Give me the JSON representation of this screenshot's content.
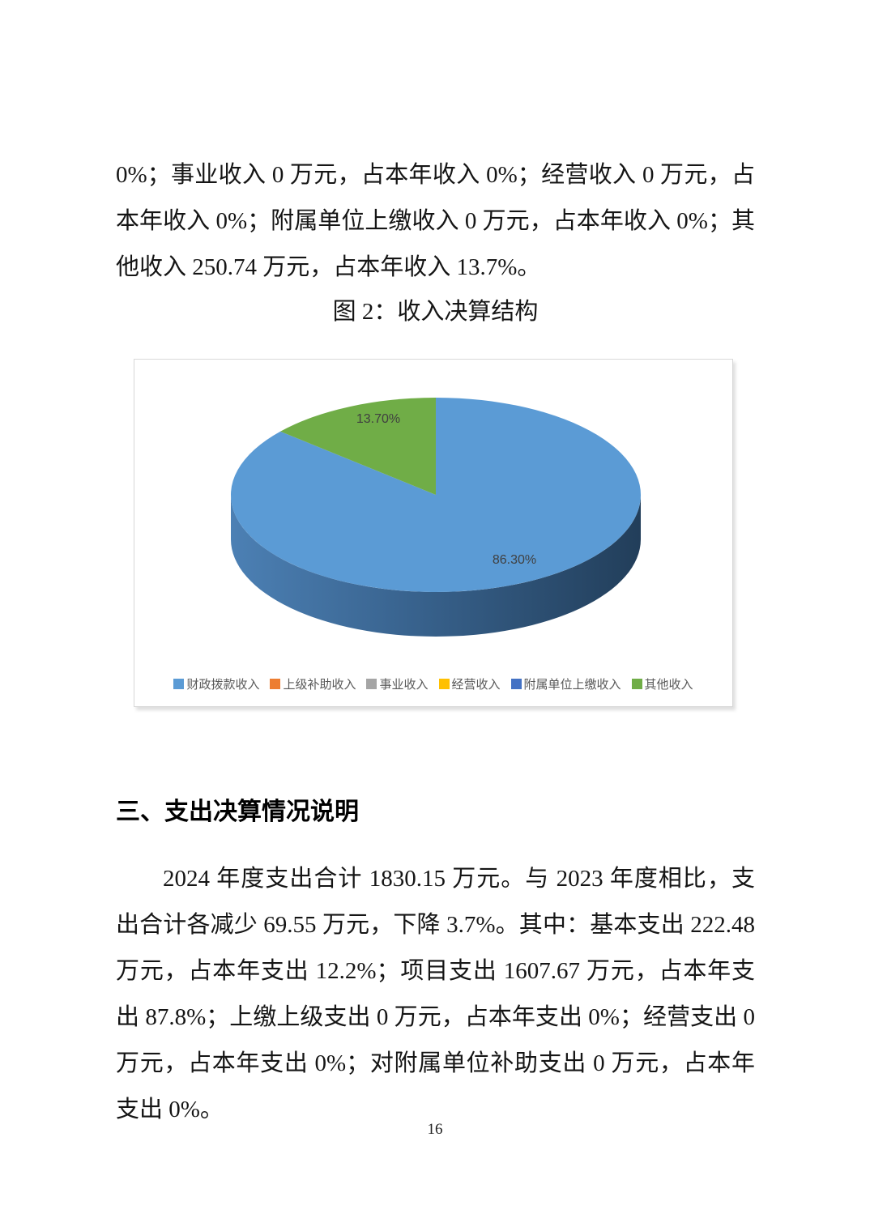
{
  "page": {
    "number": "16"
  },
  "income_paragraph": "0%；事业收入 0 万元，占本年收入 0%；经营收入 0 万元，占本年收入 0%；附属单位上缴收入 0 万元，占本年收入 0%；其他收入 250.74 万元，占本年收入 13.7%。",
  "figure_caption": "图 2：收入决算结构",
  "section_heading": "三、支出决算情况说明",
  "expenditure_paragraph": "2024 年度支出合计 1830.15 万元。与 2023 年度相比，支出合计各减少 69.55 万元，下降 3.7%。其中：基本支出 222.48 万元，占本年支出 12.2%；项目支出 1607.67 万元，占本年支出 87.8%；上缴上级支出 0 万元，占本年支出 0%；经营支出 0 万元，占本年支出 0%；对附属单位补助支出 0 万元，占本年支出 0%。",
  "chart_data": {
    "type": "pie",
    "style": "3d",
    "title": "图 2：收入决算结构",
    "legend_position": "bottom",
    "slices": [
      {
        "label": "财政拨款收入",
        "percent": 86.3,
        "color": "#5B9BD5",
        "data_label": "86.30%"
      },
      {
        "label": "上级补助收入",
        "percent": 0,
        "color": "#ED7D31",
        "data_label": ""
      },
      {
        "label": "事业收入",
        "percent": 0,
        "color": "#A5A5A5",
        "data_label": ""
      },
      {
        "label": "经营收入",
        "percent": 0,
        "color": "#FFC000",
        "data_label": ""
      },
      {
        "label": "附属单位上缴收入",
        "percent": 0,
        "color": "#4472C4",
        "data_label": ""
      },
      {
        "label": "其他收入",
        "percent": 13.7,
        "color": "#70AD47",
        "data_label": "13.70%"
      }
    ]
  }
}
